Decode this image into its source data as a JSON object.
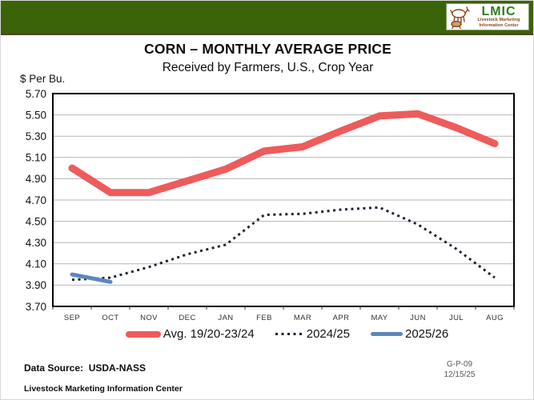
{
  "header": {
    "band_color": "#3b6307",
    "logo": {
      "acronym": "LMIC",
      "line1": "Livestock Marketing",
      "line2": "Information Center",
      "brand_green": "#2e7d1e",
      "brand_brown": "#8a4b1e",
      "icon": "livestock-sketch-icon"
    }
  },
  "title": "CORN – MONTHLY AVERAGE PRICE",
  "subtitle": "Received by Farmers, U.S., Crop Year",
  "y_axis_unit": "$ Per Bu.",
  "chart_data": {
    "type": "line",
    "title": "CORN – MONTHLY AVERAGE PRICE",
    "subtitle": "Received by Farmers, U.S., Crop Year",
    "ylabel": "$ Per Bu.",
    "categories": [
      "SEP",
      "OCT",
      "NOV",
      "DEC",
      "JAN",
      "FEB",
      "MAR",
      "APR",
      "MAY",
      "JUN",
      "JUL",
      "AUG"
    ],
    "series": [
      {
        "name": "Avg. 19/20-23/24",
        "style": "solid",
        "color": "#ee5b5b",
        "stroke_width": 9,
        "values": [
          5.0,
          4.77,
          4.77,
          4.88,
          4.99,
          5.16,
          5.2,
          5.35,
          5.49,
          5.51,
          5.38,
          5.23
        ]
      },
      {
        "name": "2024/25",
        "style": "dotted",
        "color": "#1b2433",
        "stroke_width": 3,
        "values": [
          3.95,
          3.97,
          4.07,
          4.19,
          4.28,
          4.56,
          4.57,
          4.61,
          4.63,
          4.47,
          4.24,
          3.97
        ]
      },
      {
        "name": "2025/26",
        "style": "solid",
        "color": "#5b87bd",
        "stroke_width": 5,
        "values": [
          4.0,
          3.93,
          null,
          null,
          null,
          null,
          null,
          null,
          null,
          null,
          null,
          null
        ]
      }
    ],
    "ylim": [
      3.7,
      5.7
    ],
    "y_step": 0.2,
    "grid": true,
    "gridline_color": "#b6b6b6",
    "legend_position": "bottom"
  },
  "footer": {
    "data_source": "Data Source:  USDA-NASS",
    "org": "Livestock Marketing Information Center",
    "ref_code": "G-P-09",
    "date": "12/15/25"
  }
}
